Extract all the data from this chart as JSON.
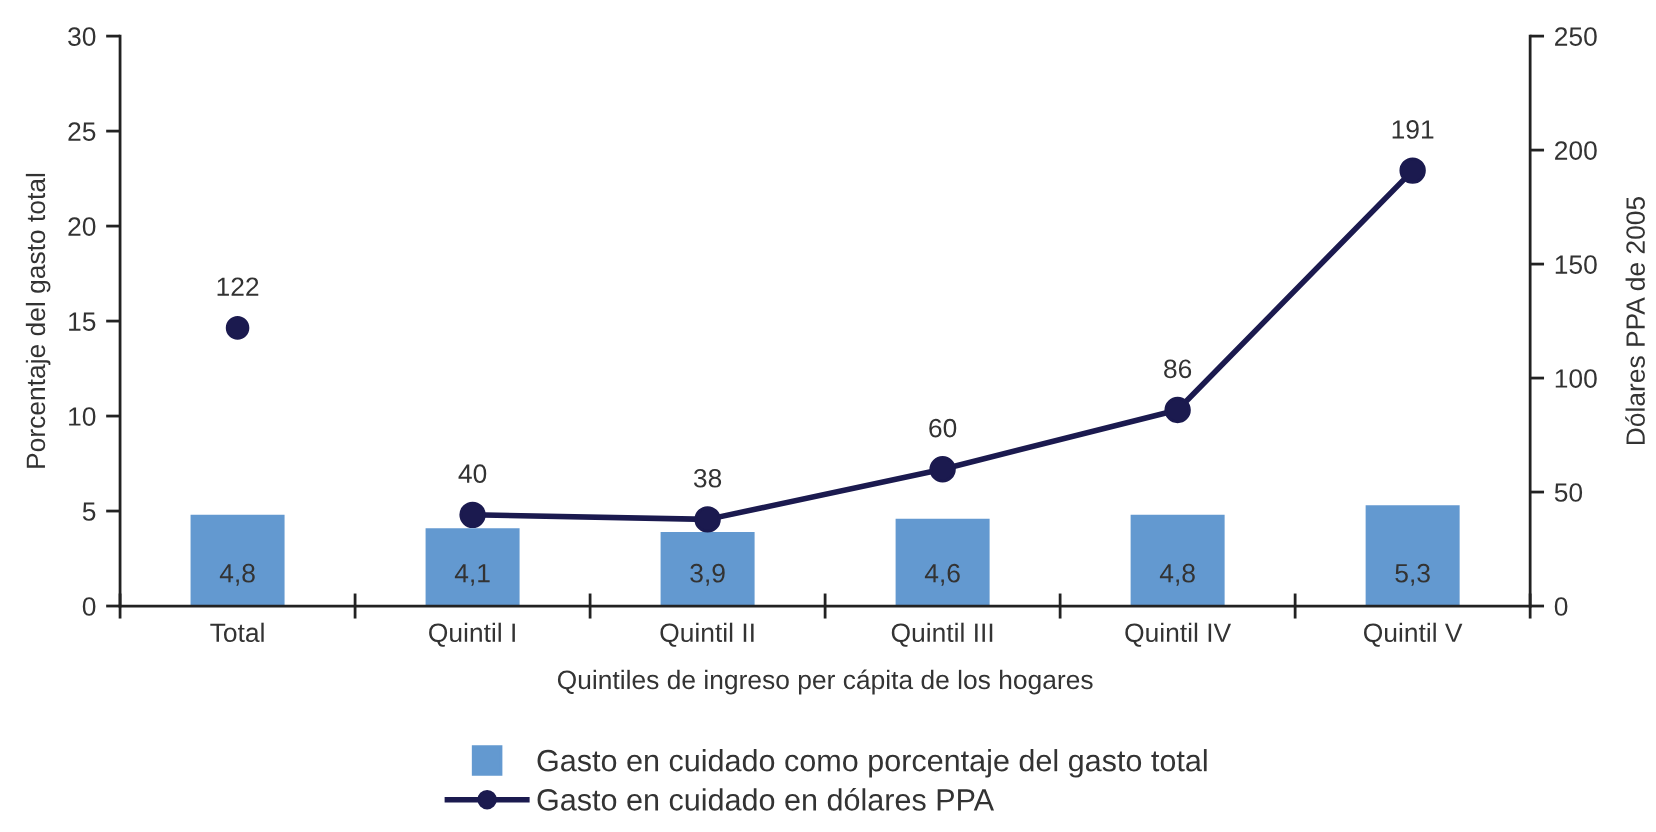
{
  "chart_data": {
    "type": "bar",
    "xlabel": "Quintiles de ingreso per cápita de los hogares",
    "ylabel": "Porcentaje del gasto total",
    "y2label": "Dólares PPA de 2005",
    "categories": [
      "Total",
      "Quintil I",
      "Quintil II",
      "Quintil III",
      "Quintil IV",
      "Quintil V"
    ],
    "series": [
      {
        "name": "Gasto en cuidado como porcentaje del gasto total",
        "color": "#6399d0",
        "values": [
          4.8,
          4.1,
          3.9,
          4.6,
          4.8,
          5.3
        ],
        "value_labels": [
          "4,8",
          "4,1",
          "3,9",
          "4,6",
          "4,8",
          "5,3"
        ]
      },
      {
        "name": "Gasto en cuidado en dólares PPA",
        "type": "line",
        "axis": "y2",
        "color": "#1b1a4f",
        "values": [
          null,
          40,
          38,
          60,
          86,
          191
        ],
        "value_labels": [
          null,
          "40",
          "38",
          "60",
          "86",
          "191"
        ]
      },
      {
        "type": "scatter",
        "axis": "y2",
        "color": "#1b1a4f",
        "values": [
          122,
          null,
          null,
          null,
          null,
          null
        ],
        "value_labels": [
          "122",
          null,
          null,
          null,
          null,
          null
        ]
      }
    ],
    "ylim": [
      0,
      30
    ],
    "yticks": [
      0,
      5,
      10,
      15,
      20,
      25,
      30
    ],
    "y2lim": [
      0,
      250
    ],
    "y2ticks": [
      0,
      50,
      100,
      150,
      200,
      250
    ],
    "legend": "bottom",
    "marker": "circle",
    "line_style": "solid"
  }
}
